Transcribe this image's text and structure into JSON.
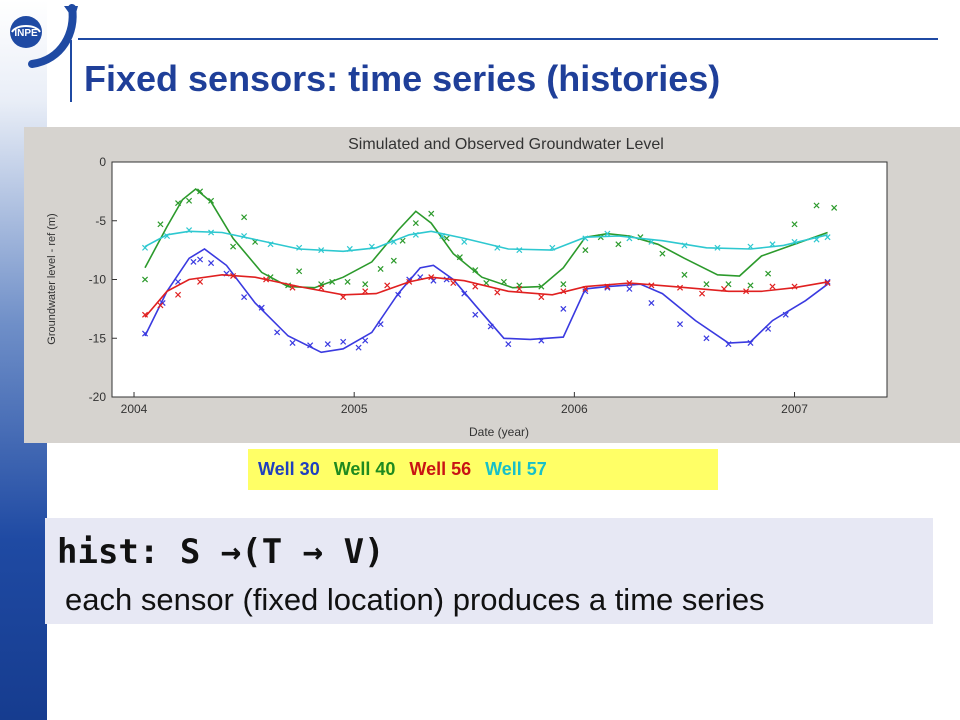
{
  "slide": {
    "logo_text": "INPE",
    "title": "Fixed sensors: time series (histories)"
  },
  "chart_data": {
    "type": "line",
    "title": "Simulated and Observed Groundwater Level",
    "xlabel": "Date (year)",
    "ylabel": "Groundwater level - ref (m)",
    "xlim": [
      2003.9,
      2007.42
    ],
    "ylim": [
      -20,
      0
    ],
    "xticks": [
      2004,
      2005,
      2006,
      2007
    ],
    "yticks": [
      0,
      -5,
      -10,
      -15,
      -20
    ],
    "grid": false,
    "series": [
      {
        "name": "Well 30",
        "color": "#3a3ae0",
        "simulated": [
          [
            2004.05,
            -14.8
          ],
          [
            2004.15,
            -11.0
          ],
          [
            2004.25,
            -8.2
          ],
          [
            2004.32,
            -7.4
          ],
          [
            2004.42,
            -8.8
          ],
          [
            2004.55,
            -12.0
          ],
          [
            2004.7,
            -14.8
          ],
          [
            2004.85,
            -16.2
          ],
          [
            2004.95,
            -15.9
          ],
          [
            2005.08,
            -14.5
          ],
          [
            2005.2,
            -11.2
          ],
          [
            2005.3,
            -9.0
          ],
          [
            2005.36,
            -8.8
          ],
          [
            2005.45,
            -10.0
          ],
          [
            2005.55,
            -12.2
          ],
          [
            2005.68,
            -15.0
          ],
          [
            2005.8,
            -15.1
          ],
          [
            2005.95,
            -14.9
          ],
          [
            2006.05,
            -10.8
          ],
          [
            2006.15,
            -10.6
          ],
          [
            2006.3,
            -10.4
          ],
          [
            2006.4,
            -11.2
          ],
          [
            2006.55,
            -13.5
          ],
          [
            2006.7,
            -15.4
          ],
          [
            2006.8,
            -15.3
          ],
          [
            2006.9,
            -13.5
          ],
          [
            2007.05,
            -11.8
          ],
          [
            2007.15,
            -10.4
          ]
        ],
        "observed": [
          [
            2004.05,
            -14.6
          ],
          [
            2004.13,
            -12.0
          ],
          [
            2004.2,
            -10.2
          ],
          [
            2004.27,
            -8.5
          ],
          [
            2004.3,
            -8.3
          ],
          [
            2004.35,
            -8.6
          ],
          [
            2004.42,
            -9.5
          ],
          [
            2004.5,
            -11.5
          ],
          [
            2004.58,
            -12.4
          ],
          [
            2004.65,
            -14.5
          ],
          [
            2004.72,
            -15.4
          ],
          [
            2004.8,
            -15.6
          ],
          [
            2004.88,
            -15.5
          ],
          [
            2004.95,
            -15.3
          ],
          [
            2005.02,
            -15.8
          ],
          [
            2005.05,
            -15.2
          ],
          [
            2005.12,
            -13.8
          ],
          [
            2005.2,
            -11.3
          ],
          [
            2005.25,
            -10.0
          ],
          [
            2005.3,
            -9.8
          ],
          [
            2005.36,
            -10.1
          ],
          [
            2005.42,
            -10.0
          ],
          [
            2005.5,
            -11.2
          ],
          [
            2005.55,
            -13.0
          ],
          [
            2005.62,
            -14.0
          ],
          [
            2005.7,
            -15.5
          ],
          [
            2005.85,
            -15.2
          ],
          [
            2005.95,
            -12.5
          ],
          [
            2006.05,
            -11.0
          ],
          [
            2006.15,
            -10.7
          ],
          [
            2006.25,
            -10.8
          ],
          [
            2006.35,
            -12.0
          ],
          [
            2006.48,
            -13.8
          ],
          [
            2006.6,
            -15.0
          ],
          [
            2006.7,
            -15.5
          ],
          [
            2006.8,
            -15.4
          ],
          [
            2006.88,
            -14.2
          ],
          [
            2006.96,
            -13.0
          ],
          [
            2007.15,
            -10.2
          ]
        ]
      },
      {
        "name": "Well 40",
        "color": "#2c9a2c",
        "simulated": [
          [
            2004.05,
            -9.0
          ],
          [
            2004.15,
            -5.5
          ],
          [
            2004.22,
            -3.2
          ],
          [
            2004.28,
            -2.3
          ],
          [
            2004.35,
            -3.4
          ],
          [
            2004.45,
            -6.5
          ],
          [
            2004.58,
            -9.4
          ],
          [
            2004.7,
            -10.6
          ],
          [
            2004.82,
            -10.7
          ],
          [
            2004.95,
            -9.8
          ],
          [
            2005.08,
            -8.5
          ],
          [
            2005.2,
            -5.8
          ],
          [
            2005.28,
            -4.2
          ],
          [
            2005.35,
            -5.2
          ],
          [
            2005.45,
            -7.8
          ],
          [
            2005.58,
            -9.8
          ],
          [
            2005.72,
            -10.7
          ],
          [
            2005.85,
            -10.6
          ],
          [
            2005.95,
            -9.0
          ],
          [
            2006.05,
            -6.4
          ],
          [
            2006.15,
            -6.1
          ],
          [
            2006.25,
            -6.3
          ],
          [
            2006.38,
            -7.0
          ],
          [
            2006.5,
            -8.2
          ],
          [
            2006.65,
            -9.6
          ],
          [
            2006.75,
            -9.7
          ],
          [
            2006.85,
            -8.0
          ],
          [
            2007.0,
            -7.0
          ],
          [
            2007.15,
            -6.0
          ]
        ],
        "observed": [
          [
            2004.05,
            -10.0
          ],
          [
            2004.12,
            -5.3
          ],
          [
            2004.2,
            -3.5
          ],
          [
            2004.25,
            -3.3
          ],
          [
            2004.3,
            -2.5
          ],
          [
            2004.35,
            -3.3
          ],
          [
            2004.45,
            -7.2
          ],
          [
            2004.5,
            -4.7
          ],
          [
            2004.55,
            -6.8
          ],
          [
            2004.62,
            -9.8
          ],
          [
            2004.7,
            -10.5
          ],
          [
            2004.75,
            -9.3
          ],
          [
            2004.85,
            -10.4
          ],
          [
            2004.9,
            -10.2
          ],
          [
            2004.97,
            -10.2
          ],
          [
            2005.05,
            -10.4
          ],
          [
            2005.12,
            -9.1
          ],
          [
            2005.18,
            -8.4
          ],
          [
            2005.22,
            -6.7
          ],
          [
            2005.28,
            -5.2
          ],
          [
            2005.35,
            -4.4
          ],
          [
            2005.42,
            -6.5
          ],
          [
            2005.48,
            -8.1
          ],
          [
            2005.55,
            -9.2
          ],
          [
            2005.6,
            -10.3
          ],
          [
            2005.68,
            -10.2
          ],
          [
            2005.75,
            -10.5
          ],
          [
            2005.85,
            -10.6
          ],
          [
            2005.95,
            -10.4
          ],
          [
            2006.05,
            -7.5
          ],
          [
            2006.12,
            -6.4
          ],
          [
            2006.2,
            -7.0
          ],
          [
            2006.3,
            -6.4
          ],
          [
            2006.4,
            -7.8
          ],
          [
            2006.5,
            -9.6
          ],
          [
            2006.6,
            -10.4
          ],
          [
            2006.7,
            -10.4
          ],
          [
            2006.8,
            -10.5
          ],
          [
            2006.88,
            -9.5
          ],
          [
            2007.0,
            -5.3
          ],
          [
            2007.1,
            -3.7
          ],
          [
            2007.18,
            -3.9
          ]
        ]
      },
      {
        "name": "Well 56",
        "color": "#e02020",
        "simulated": [
          [
            2004.05,
            -13.2
          ],
          [
            2004.15,
            -11.0
          ],
          [
            2004.25,
            -10.0
          ],
          [
            2004.4,
            -9.6
          ],
          [
            2004.55,
            -9.8
          ],
          [
            2004.75,
            -10.6
          ],
          [
            2004.95,
            -11.3
          ],
          [
            2005.1,
            -11.2
          ],
          [
            2005.25,
            -10.2
          ],
          [
            2005.35,
            -9.8
          ],
          [
            2005.5,
            -10.1
          ],
          [
            2005.7,
            -11.0
          ],
          [
            2005.9,
            -11.3
          ],
          [
            2006.05,
            -10.6
          ],
          [
            2006.25,
            -10.3
          ],
          [
            2006.45,
            -10.6
          ],
          [
            2006.7,
            -11.0
          ],
          [
            2006.85,
            -11.0
          ],
          [
            2007.0,
            -10.7
          ],
          [
            2007.15,
            -10.2
          ]
        ],
        "observed": [
          [
            2004.05,
            -13.0
          ],
          [
            2004.12,
            -12.2
          ],
          [
            2004.2,
            -11.3
          ],
          [
            2004.3,
            -10.2
          ],
          [
            2004.45,
            -9.7
          ],
          [
            2004.6,
            -10.0
          ],
          [
            2004.72,
            -10.7
          ],
          [
            2004.85,
            -10.7
          ],
          [
            2004.95,
            -11.5
          ],
          [
            2005.05,
            -11.0
          ],
          [
            2005.15,
            -10.5
          ],
          [
            2005.25,
            -10.2
          ],
          [
            2005.35,
            -9.8
          ],
          [
            2005.45,
            -10.3
          ],
          [
            2005.55,
            -10.6
          ],
          [
            2005.65,
            -11.1
          ],
          [
            2005.75,
            -10.8
          ],
          [
            2005.85,
            -11.5
          ],
          [
            2005.95,
            -11.0
          ],
          [
            2006.05,
            -10.8
          ],
          [
            2006.15,
            -10.6
          ],
          [
            2006.25,
            -10.3
          ],
          [
            2006.35,
            -10.5
          ],
          [
            2006.48,
            -10.7
          ],
          [
            2006.58,
            -11.2
          ],
          [
            2006.68,
            -10.8
          ],
          [
            2006.78,
            -11.0
          ],
          [
            2006.9,
            -10.6
          ],
          [
            2007.0,
            -10.6
          ],
          [
            2007.15,
            -10.3
          ]
        ]
      },
      {
        "name": "Well 57",
        "color": "#2ec8d0",
        "simulated": [
          [
            2004.05,
            -7.2
          ],
          [
            2004.15,
            -6.2
          ],
          [
            2004.25,
            -5.9
          ],
          [
            2004.4,
            -6.0
          ],
          [
            2004.55,
            -6.6
          ],
          [
            2004.75,
            -7.4
          ],
          [
            2004.95,
            -7.6
          ],
          [
            2005.1,
            -7.3
          ],
          [
            2005.25,
            -6.2
          ],
          [
            2005.35,
            -5.9
          ],
          [
            2005.5,
            -6.5
          ],
          [
            2005.7,
            -7.4
          ],
          [
            2005.9,
            -7.5
          ],
          [
            2006.05,
            -6.4
          ],
          [
            2006.2,
            -6.3
          ],
          [
            2006.4,
            -6.7
          ],
          [
            2006.6,
            -7.3
          ],
          [
            2006.8,
            -7.4
          ],
          [
            2006.95,
            -7.1
          ],
          [
            2007.15,
            -6.2
          ]
        ],
        "observed": [
          [
            2004.05,
            -7.3
          ],
          [
            2004.15,
            -6.3
          ],
          [
            2004.25,
            -5.8
          ],
          [
            2004.35,
            -6.0
          ],
          [
            2004.5,
            -6.3
          ],
          [
            2004.62,
            -7.0
          ],
          [
            2004.75,
            -7.3
          ],
          [
            2004.85,
            -7.5
          ],
          [
            2004.98,
            -7.4
          ],
          [
            2005.08,
            -7.2
          ],
          [
            2005.18,
            -6.8
          ],
          [
            2005.28,
            -6.2
          ],
          [
            2005.4,
            -6.3
          ],
          [
            2005.5,
            -6.8
          ],
          [
            2005.65,
            -7.3
          ],
          [
            2005.75,
            -7.5
          ],
          [
            2005.9,
            -7.3
          ],
          [
            2006.05,
            -6.5
          ],
          [
            2006.15,
            -6.1
          ],
          [
            2006.25,
            -6.5
          ],
          [
            2006.35,
            -6.8
          ],
          [
            2006.5,
            -7.1
          ],
          [
            2006.65,
            -7.3
          ],
          [
            2006.8,
            -7.2
          ],
          [
            2006.9,
            -7.0
          ],
          [
            2007.0,
            -6.8
          ],
          [
            2007.1,
            -6.6
          ],
          [
            2007.15,
            -6.4
          ]
        ]
      }
    ]
  },
  "legend": {
    "items": [
      {
        "label": "Well 30",
        "color": "#1f3fbf"
      },
      {
        "label": "Well 40",
        "color": "#1f8a1f"
      },
      {
        "label": "Well 56",
        "color": "#c81414"
      },
      {
        "label": "Well 57",
        "color": "#18c0c8"
      }
    ]
  },
  "hist": {
    "signature": "hist: S →(T → V)",
    "description": "each sensor (fixed location) produces a time series"
  }
}
